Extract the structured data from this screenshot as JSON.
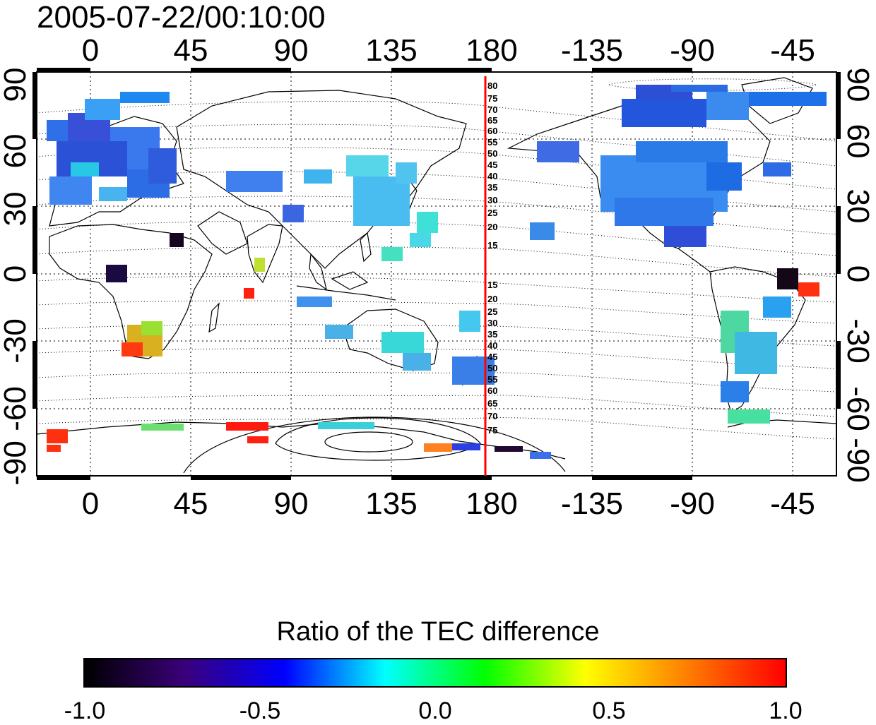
{
  "timestamp": "2005-07-22/00:10:00",
  "map": {
    "x_tick_labels": [
      "0",
      "45",
      "90",
      "135",
      "180",
      "-135",
      "-90",
      "-45"
    ],
    "y_tick_labels": [
      "90",
      "60",
      "30",
      "0",
      "-30",
      "-60",
      "-90"
    ],
    "contour_labels_north": [
      "80",
      "75",
      "70",
      "65",
      "60",
      "55",
      "50",
      "45",
      "40",
      "35",
      "30",
      "25",
      "20",
      "15"
    ],
    "contour_labels_south": [
      "15",
      "20",
      "25",
      "30",
      "35",
      "40",
      "45",
      "50",
      "55",
      "60",
      "65",
      "70",
      "75"
    ],
    "meridian_line_color": "#ff0000"
  },
  "colorbar": {
    "title": "Ratio of the TEC difference",
    "ticks": [
      "-1.0",
      "-0.5",
      "0.0",
      "0.5",
      "1.0"
    ],
    "colors": [
      "#000000",
      "#3a007a",
      "#0000ff",
      "#00ffff",
      "#00ff00",
      "#ffff00",
      "#ff8000",
      "#ff0000"
    ]
  }
}
